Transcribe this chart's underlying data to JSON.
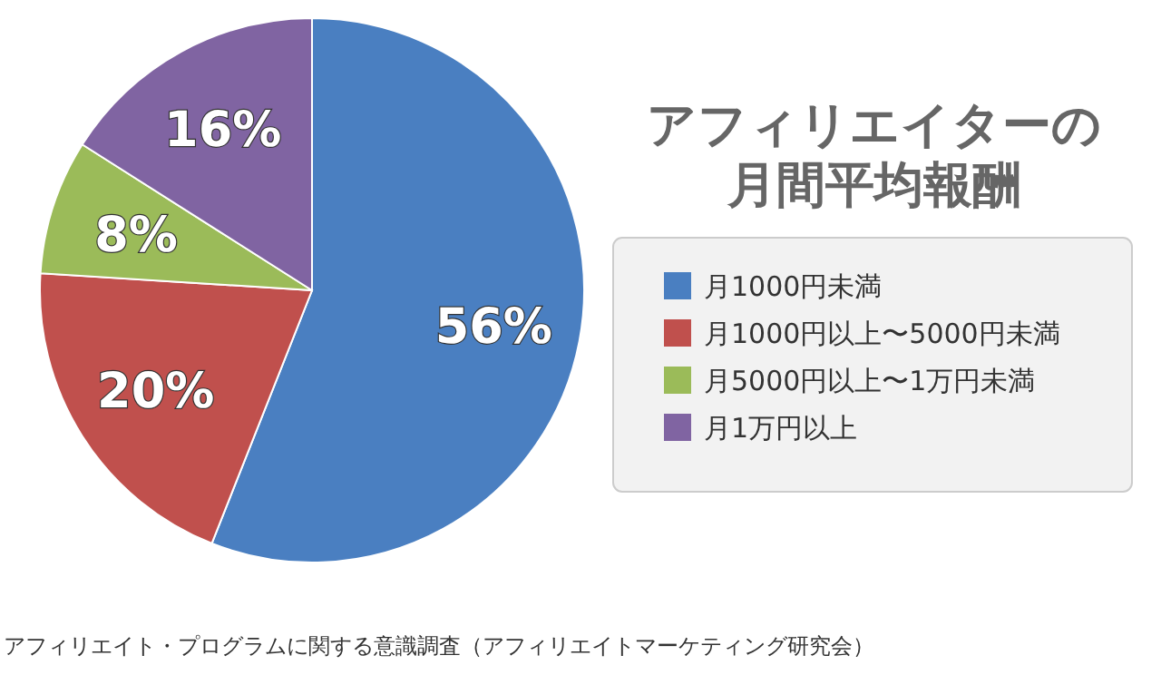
{
  "chart_data": {
    "type": "pie",
    "title": "アフィリエイターの月間平均報酬",
    "categories": [
      "月1000円未満",
      "月1000円以上〜5000円未満",
      "月5000円以上〜1万円未満",
      "月1万円以上"
    ],
    "values": [
      56,
      20,
      8,
      16
    ],
    "colors": [
      "#4a7fc1",
      "#c0504d",
      "#9bbb59",
      "#8064a2"
    ],
    "value_labels": [
      "56%",
      "20%",
      "8%",
      "16%"
    ],
    "legend": "right",
    "annotations": [
      "アフィリエイト・プログラムに関する意識調査（アフィリエイトマーケティング研究会）"
    ]
  }
}
